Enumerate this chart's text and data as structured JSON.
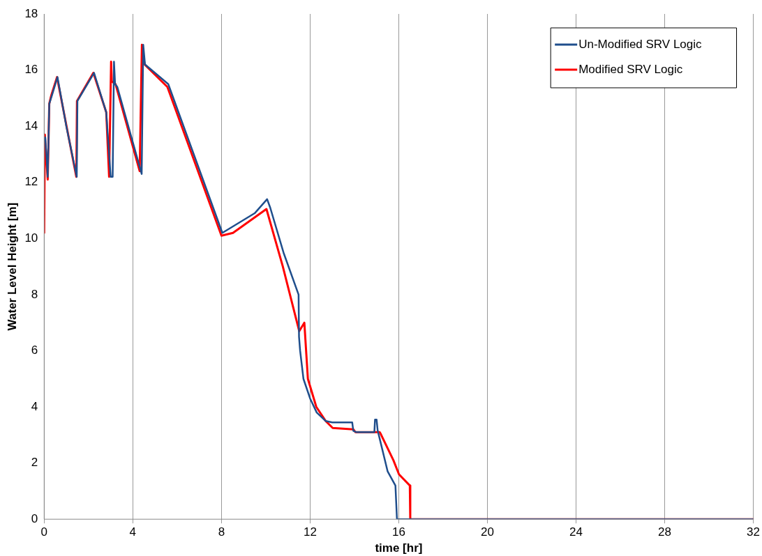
{
  "chart_data": {
    "type": "line",
    "xlabel": "time [hr]",
    "ylabel": "Water Level Height [m]",
    "xlim": [
      0,
      32
    ],
    "xticks": [
      0,
      4,
      8,
      12,
      16,
      20,
      24,
      28,
      32
    ],
    "ylim": [
      0,
      18
    ],
    "yticks": [
      0,
      2,
      4,
      6,
      8,
      10,
      12,
      14,
      16,
      18
    ],
    "grid": "x",
    "legend": "top right",
    "marker": "none",
    "line_style": "solid",
    "series": [
      {
        "name": "Un-Modified SRV Logic",
        "color": "#1f4e8c",
        "x": [
          0,
          0.05,
          0.16,
          0.23,
          0.35,
          0.6,
          1.0,
          1.47,
          1.5,
          2.25,
          2.8,
          3.0,
          3.09,
          3.15,
          3.2,
          3.3,
          4.4,
          4.47,
          4.55,
          5.6,
          8.04,
          9.5,
          10.06,
          10.2,
          10.8,
          11.48,
          11.5,
          11.55,
          11.7,
          12.0,
          12.3,
          12.7,
          13.0,
          13.5,
          13.9,
          13.95,
          14.1,
          14.9,
          14.93,
          15.0,
          15.05,
          15.1,
          15.5,
          15.85,
          15.92,
          32
        ],
        "values": [
          13.5,
          13.6,
          12.2,
          14.8,
          15.1,
          15.75,
          14.0,
          12.2,
          14.9,
          15.9,
          14.5,
          12.2,
          12.2,
          16.3,
          15.5,
          15.4,
          12.3,
          16.9,
          16.2,
          15.5,
          10.2,
          10.9,
          11.4,
          11.1,
          9.5,
          8.0,
          6.5,
          6.0,
          5.0,
          4.3,
          3.8,
          3.5,
          3.45,
          3.45,
          3.45,
          3.15,
          3.1,
          3.1,
          3.55,
          3.55,
          3.15,
          3.0,
          1.7,
          1.2,
          0,
          0
        ]
      },
      {
        "name": "Modified SRV Logic",
        "color": "#ff0000",
        "x": [
          0,
          0.03,
          0.16,
          0.23,
          0.32,
          0.58,
          1.45,
          1.48,
          2.22,
          2.8,
          2.93,
          3.02,
          3.05,
          3.22,
          4.31,
          4.41,
          4.53,
          5.56,
          8.0,
          8.52,
          10.03,
          10.77,
          11.51,
          11.74,
          11.9,
          12.28,
          12.7,
          13.02,
          13.95,
          14.05,
          15.14,
          15.18,
          15.76,
          16.01,
          16.5,
          16.52,
          32
        ],
        "values": [
          10.2,
          13.7,
          12.1,
          14.8,
          15.1,
          15.75,
          12.2,
          14.9,
          15.9,
          14.5,
          12.2,
          16.3,
          15.6,
          15.5,
          12.4,
          16.9,
          16.2,
          15.4,
          10.1,
          10.2,
          11.05,
          9.0,
          6.7,
          7.0,
          5.0,
          4.0,
          3.5,
          3.25,
          3.2,
          3.1,
          3.1,
          3.05,
          2.1,
          1.6,
          1.2,
          0,
          0
        ]
      }
    ]
  }
}
